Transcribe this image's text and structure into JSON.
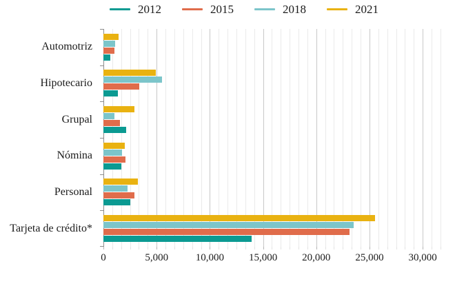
{
  "chart_data": {
    "type": "bar",
    "orientation": "horizontal",
    "title": "",
    "xlabel": "",
    "ylabel": "",
    "categories": [
      "Automotriz",
      "Hipotecario",
      "Grupal",
      "Nómina",
      "Personal",
      "Tarjeta de crédito*"
    ],
    "series": [
      {
        "name": "2012",
        "color": "#0B9A92",
        "values": [
          650,
          1350,
          2150,
          1700,
          2550,
          13900
        ]
      },
      {
        "name": "2015",
        "color": "#E06C4B",
        "values": [
          1050,
          3350,
          1550,
          2050,
          2900,
          23100
        ]
      },
      {
        "name": "2018",
        "color": "#7CC5CA",
        "values": [
          1100,
          5500,
          1050,
          1750,
          2250,
          23500
        ]
      },
      {
        "name": "2021",
        "color": "#E9B211",
        "values": [
          1450,
          4900,
          2900,
          2000,
          3250,
          25500
        ]
      }
    ],
    "bar_order_top_to_bottom": [
      "2021",
      "2018",
      "2015",
      "2012"
    ],
    "xlim": [
      0,
      32000
    ],
    "x_ticks": [
      0,
      5000,
      10000,
      15000,
      20000,
      25000,
      30000
    ],
    "x_tick_labels": [
      "0",
      "5,000",
      "10,000",
      "15,000",
      "20,000",
      "25,000",
      "30,000"
    ],
    "grid": {
      "minor_divisions_per_major": 6,
      "major_step": 5000,
      "minor_color": "#EAEAEA",
      "major_color": "#C8C8C8",
      "axis_color": "#8C8C8C"
    },
    "legend": {
      "position": "top",
      "entries": [
        "2012",
        "2015",
        "2018",
        "2021"
      ]
    }
  }
}
